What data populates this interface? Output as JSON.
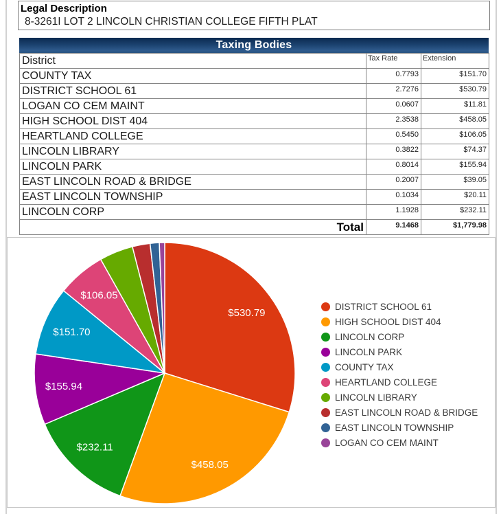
{
  "legal": {
    "title": "Legal Description",
    "value": "8-3261I LOT 2 LINCOLN CHRISTIAN COLLEGE FIFTH PLAT"
  },
  "table": {
    "title": "Taxing Bodies",
    "columns": [
      "District",
      "Tax Rate",
      "Extension"
    ],
    "rows": [
      {
        "district": "COUNTY TAX",
        "rate": "0.7793",
        "extension": "$151.70"
      },
      {
        "district": "DISTRICT SCHOOL 61",
        "rate": "2.7276",
        "extension": "$530.79"
      },
      {
        "district": "LOGAN CO CEM MAINT",
        "rate": "0.0607",
        "extension": "$11.81"
      },
      {
        "district": "HIGH SCHOOL DIST 404",
        "rate": "2.3538",
        "extension": "$458.05"
      },
      {
        "district": "HEARTLAND COLLEGE",
        "rate": "0.5450",
        "extension": "$106.05"
      },
      {
        "district": "LINCOLN LIBRARY",
        "rate": "0.3822",
        "extension": "$74.37"
      },
      {
        "district": "LINCOLN PARK",
        "rate": "0.8014",
        "extension": "$155.94"
      },
      {
        "district": "EAST LINCOLN ROAD & BRIDGE",
        "rate": "0.2007",
        "extension": "$39.05"
      },
      {
        "district": "EAST LINCOLN TOWNSHIP",
        "rate": "0.1034",
        "extension": "$20.11"
      },
      {
        "district": "LINCOLN CORP",
        "rate": "1.1928",
        "extension": "$232.11"
      }
    ],
    "total": {
      "label": "Total",
      "rate": "9.1468",
      "extension": "$1,779.98"
    }
  },
  "chart_data": {
    "type": "pie",
    "title": "",
    "legend_position": "right",
    "direction": "clockwise",
    "start_angle_deg": 0,
    "total": 1779.98,
    "slices": [
      {
        "label": "DISTRICT SCHOOL 61",
        "value": 530.79,
        "display": "$530.79",
        "color": "#dc3912"
      },
      {
        "label": "HIGH SCHOOL DIST 404",
        "value": 458.05,
        "display": "$458.05",
        "color": "#ff9900"
      },
      {
        "label": "LINCOLN CORP",
        "value": 232.11,
        "display": "$232.11",
        "color": "#109618"
      },
      {
        "label": "LINCOLN PARK",
        "value": 155.94,
        "display": "$155.94",
        "color": "#990099"
      },
      {
        "label": "COUNTY TAX",
        "value": 151.7,
        "display": "$151.70",
        "color": "#0099c6"
      },
      {
        "label": "HEARTLAND COLLEGE",
        "value": 106.05,
        "display": "$106.05",
        "color": "#dd4477"
      },
      {
        "label": "LINCOLN LIBRARY",
        "value": 74.37,
        "color": "#66aa00"
      },
      {
        "label": "EAST LINCOLN ROAD & BRIDGE",
        "value": 39.05,
        "color": "#b82e2e"
      },
      {
        "label": "EAST LINCOLN TOWNSHIP",
        "value": 20.11,
        "color": "#316395"
      },
      {
        "label": "LOGAN CO CEM MAINT",
        "value": 11.81,
        "color": "#994499"
      }
    ]
  }
}
